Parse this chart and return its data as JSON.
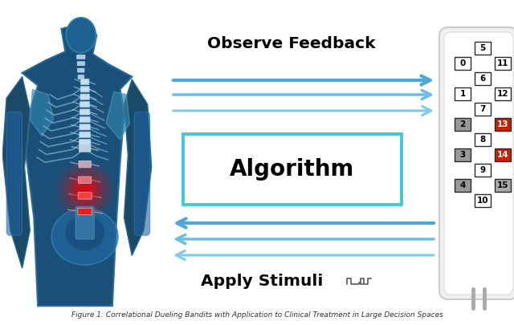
{
  "observe_feedback": "Observe Feedback",
  "algorithm": "Algorithm",
  "apply_stimuli": "Apply Stimuli",
  "arrow_color_1": "#4da8d8",
  "arrow_color_2": "#6abde8",
  "arrow_color_3": "#80caf0",
  "algo_box_edge": "#40c8d8",
  "algo_box_face": "white",
  "bg": "white",
  "text_color": "black",
  "grid_rows": [
    {
      "type": "single",
      "label": "5",
      "fc": "white"
    },
    {
      "type": "double",
      "left": "0",
      "left_fc": "white",
      "right": "11",
      "right_fc": "white"
    },
    {
      "type": "single",
      "label": "6",
      "fc": "white"
    },
    {
      "type": "double",
      "left": "1",
      "left_fc": "white",
      "right": "12",
      "right_fc": "white"
    },
    {
      "type": "single",
      "label": "7",
      "fc": "white"
    },
    {
      "type": "double",
      "left": "2",
      "left_fc": "#999999",
      "right": "13",
      "right_fc": "#cc2000"
    },
    {
      "type": "single",
      "label": "8",
      "fc": "white"
    },
    {
      "type": "double",
      "left": "3",
      "left_fc": "#999999",
      "right": "14",
      "right_fc": "#cc2000"
    },
    {
      "type": "single",
      "label": "9",
      "fc": "white"
    },
    {
      "type": "double",
      "left": "4",
      "left_fc": "#999999",
      "right": "15",
      "right_fc": "#aaaaaa"
    },
    {
      "type": "single",
      "label": "10",
      "fc": "white"
    }
  ],
  "caption": "Figure 1: Correlational Dueling Bandits with Application to Clinical Treatment in Large Decision Spaces",
  "figw": 6.4,
  "figh": 4.05,
  "dpi": 100
}
